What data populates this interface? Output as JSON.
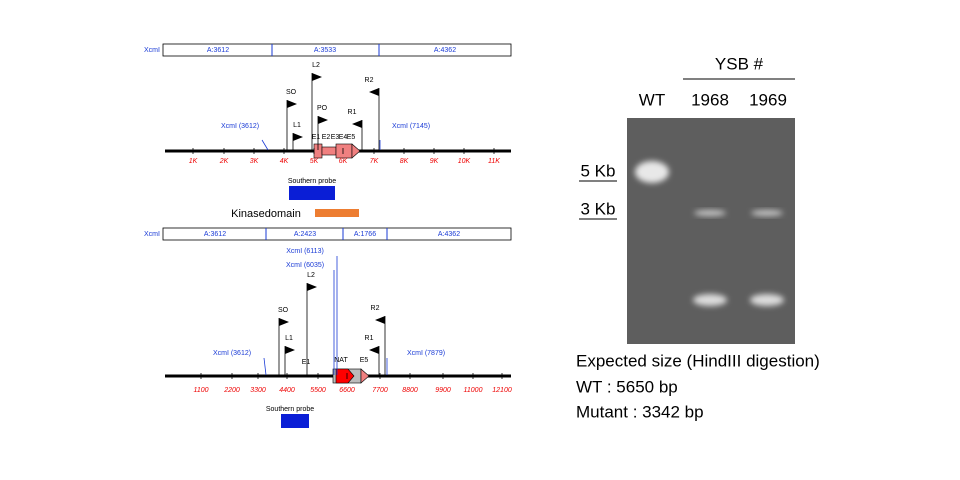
{
  "top_map": {
    "enzyme": "XcmI",
    "fragments": [
      "A:3612",
      "A:3533",
      "A:4362"
    ],
    "sites": [
      "XcmI (3612)",
      "XcmI (7145)"
    ],
    "primers": [
      "L2",
      "SO",
      "PO",
      "L1",
      "R2",
      "R1"
    ],
    "exons": [
      "E1",
      "E2",
      "E3",
      "E4",
      "E5"
    ],
    "ticks": [
      "1K",
      "2K",
      "3K",
      "4K",
      "5K",
      "6K",
      "7K",
      "8K",
      "9K",
      "10K",
      "11K"
    ],
    "probe": "Southern probe",
    "domain": "Kinasedomain"
  },
  "bottom_map": {
    "enzyme": "XcmI",
    "fragments": [
      "A:3612",
      "A:2423",
      "A:1766",
      "A:4362"
    ],
    "sites": [
      "XcmI (6113)",
      "XcmI (6035)",
      "XcmI (3612)",
      "XcmI (7879)"
    ],
    "primers": [
      "L2",
      "SO",
      "L1",
      "R2",
      "R1"
    ],
    "features": [
      "E1",
      "NAT",
      "E5"
    ],
    "ticks": [
      "1100",
      "2200",
      "3300",
      "4400",
      "5500",
      "6600",
      "7700",
      "8800",
      "9900",
      "11000",
      "12100"
    ],
    "probe": "Southern probe"
  },
  "gel": {
    "group": "YSB #",
    "lanes": [
      "WT",
      "1968",
      "1969"
    ],
    "markers": [
      "5 Kb",
      "3 Kb"
    ]
  },
  "caption": [
    "Expected size (HindIII digestion)",
    "WT : 5650 bp",
    "Mutant : 3342 bp"
  ]
}
